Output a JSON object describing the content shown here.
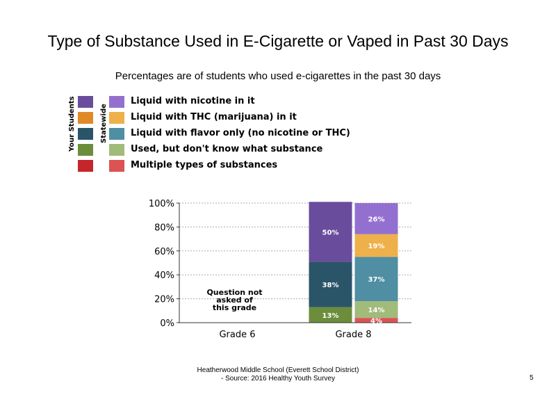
{
  "chart_data": {
    "type": "bar",
    "stacked": true,
    "title": "Type of Substance Used in E-Cigarette or Vaped in Past 30 Days",
    "subtitle": "Percentages are of students who used e-cigarettes in the past 30 days",
    "legend_group_labels": [
      "Your Students",
      "Statewide"
    ],
    "categories": [
      "Grade 6",
      "Grade 8"
    ],
    "ylim": [
      0,
      100
    ],
    "yticks": [
      "0%",
      "20%",
      "40%",
      "60%",
      "80%",
      "100%"
    ],
    "grid": true,
    "legend_placement": "top-left",
    "series": [
      {
        "name": "Liquid with nicotine in it",
        "color_local": "#6a4c9c",
        "color_state": "#9370d0",
        "values": {
          "local": [
            null,
            50
          ],
          "state": [
            null,
            26
          ]
        }
      },
      {
        "name": "Liquid with THC (marijuana) in it",
        "color_local": "#e08a27",
        "color_state": "#eeb04b",
        "values": {
          "local": [
            null,
            0
          ],
          "state": [
            null,
            19
          ]
        }
      },
      {
        "name": "Liquid with flavor only (no nicotine or THC)",
        "color_local": "#2a5468",
        "color_state": "#4f8ea3",
        "values": {
          "local": [
            null,
            38
          ],
          "state": [
            null,
            37
          ]
        }
      },
      {
        "name": "Used, but don't know what substance",
        "color_local": "#6b8d3c",
        "color_state": "#a0bb7a",
        "values": {
          "local": [
            null,
            13
          ],
          "state": [
            null,
            14
          ]
        }
      },
      {
        "name": "Multiple types of substances",
        "color_local": "#c4262c",
        "color_state": "#dc5354",
        "values": {
          "local": [
            null,
            0
          ],
          "state": [
            null,
            4
          ]
        }
      }
    ],
    "annotations": [
      {
        "category": "Grade 6",
        "text": "Question not asked of this grade"
      }
    ]
  },
  "footer": {
    "line1": "Heatherwood Middle School (Everett School District)",
    "line2": "- Source: 2016 Healthy Youth Survey",
    "page": "5"
  }
}
